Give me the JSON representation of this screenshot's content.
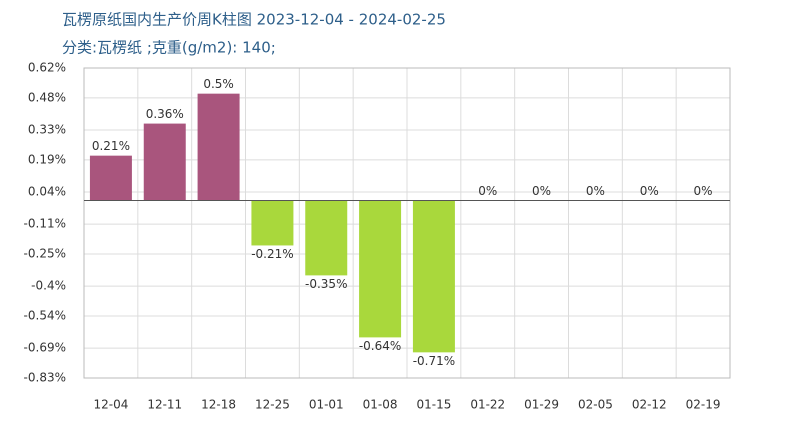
{
  "chart_data": {
    "type": "bar",
    "title": "瓦楞原纸国内生产价周K柱图 2023-12-04 - 2024-02-25",
    "subtitle": "分类:瓦楞纸 ;克重(g/m2): 140;",
    "categories": [
      "12-04",
      "12-11",
      "12-18",
      "12-25",
      "01-01",
      "01-08",
      "01-15",
      "01-22",
      "01-29",
      "02-05",
      "02-12",
      "02-19"
    ],
    "values": [
      0.21,
      0.36,
      0.5,
      -0.21,
      -0.35,
      -0.64,
      -0.71,
      0,
      0,
      0,
      0,
      0
    ],
    "value_labels": [
      "0.21%",
      "0.36%",
      "0.5%",
      "-0.21%",
      "-0.35%",
      "-0.64%",
      "-0.71%",
      "0%",
      "0%",
      "0%",
      "0%",
      "0%"
    ],
    "color": "#a9557d",
    "negative_color": "#a9d83c",
    "ylim": [
      -0.83,
      0.62
    ],
    "yticks": [
      {
        "value": 0.62,
        "label": "0.62%"
      },
      {
        "value": 0.48,
        "label": "0.48%"
      },
      {
        "value": 0.33,
        "label": "0.33%"
      },
      {
        "value": 0.19,
        "label": "0.19%"
      },
      {
        "value": 0.04,
        "label": "0.04%"
      },
      {
        "value": -0.11,
        "label": "-0.11%"
      },
      {
        "value": -0.25,
        "label": "-0.25%"
      },
      {
        "value": -0.4,
        "label": "-0.4%"
      },
      {
        "value": -0.54,
        "label": "-0.54%"
      },
      {
        "value": -0.69,
        "label": "-0.69%"
      },
      {
        "value": -0.83,
        "label": "-0.83%"
      }
    ],
    "grid": true
  }
}
